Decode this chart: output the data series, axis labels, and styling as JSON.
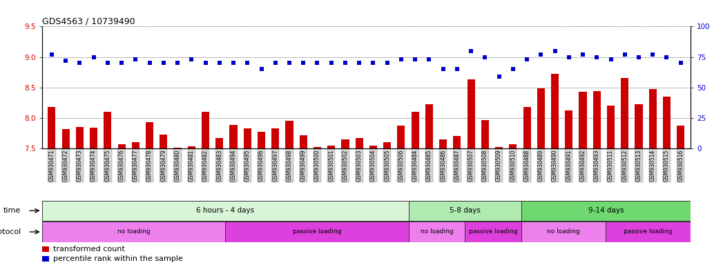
{
  "title": "GDS4563 / 10739490",
  "samples": [
    "GSM930471",
    "GSM930472",
    "GSM930473",
    "GSM930474",
    "GSM930475",
    "GSM930476",
    "GSM930477",
    "GSM930478",
    "GSM930479",
    "GSM930480",
    "GSM930481",
    "GSM930482",
    "GSM930483",
    "GSM930494",
    "GSM930495",
    "GSM930496",
    "GSM930497",
    "GSM930498",
    "GSM930499",
    "GSM930500",
    "GSM930501",
    "GSM930502",
    "GSM930503",
    "GSM930504",
    "GSM930505",
    "GSM930506",
    "GSM930484",
    "GSM930485",
    "GSM930486",
    "GSM930487",
    "GSM930507",
    "GSM930508",
    "GSM930509",
    "GSM930510",
    "GSM930488",
    "GSM930489",
    "GSM930490",
    "GSM930491",
    "GSM930492",
    "GSM930493",
    "GSM930511",
    "GSM930512",
    "GSM930513",
    "GSM930514",
    "GSM930515",
    "GSM930516"
  ],
  "bar_values": [
    8.18,
    7.82,
    7.85,
    7.84,
    8.1,
    7.57,
    7.6,
    7.93,
    7.73,
    7.51,
    7.53,
    8.1,
    7.67,
    7.88,
    7.83,
    7.77,
    7.83,
    7.95,
    7.72,
    7.52,
    7.55,
    7.65,
    7.67,
    7.55,
    7.6,
    7.87,
    8.1,
    8.23,
    7.65,
    7.7,
    8.63,
    7.96,
    7.52,
    7.57,
    8.18,
    8.48,
    8.72,
    8.12,
    8.43,
    8.44,
    8.2,
    8.65,
    8.23,
    8.47,
    8.35,
    7.87
  ],
  "dot_pct": [
    77,
    72,
    70,
    75,
    70,
    70,
    73,
    70,
    70,
    70,
    73,
    70,
    70,
    70,
    70,
    65,
    70,
    70,
    70,
    70,
    70,
    70,
    70,
    70,
    70,
    73,
    73,
    73,
    65,
    65,
    80,
    75,
    59,
    65,
    73,
    77,
    80,
    75,
    77,
    75,
    73,
    77,
    75,
    77,
    75,
    70
  ],
  "ylim_left": [
    7.5,
    9.5
  ],
  "ylim_right": [
    0,
    100
  ],
  "yticks_left": [
    7.5,
    8.0,
    8.5,
    9.0,
    9.5
  ],
  "yticks_right": [
    0,
    25,
    50,
    75,
    100
  ],
  "bar_color": "#cc0000",
  "dot_color": "#0000cc",
  "bg_color": "#ffffff",
  "xtick_bg": "#d4d4d4",
  "time_groups": [
    {
      "label": "6 hours - 4 days",
      "start": 0,
      "end": 26,
      "color": "#d8f5d8"
    },
    {
      "label": "5-8 days",
      "start": 26,
      "end": 34,
      "color": "#b0eab0"
    },
    {
      "label": "9-14 days",
      "start": 34,
      "end": 46,
      "color": "#70d870"
    }
  ],
  "protocol_groups": [
    {
      "label": "no loading",
      "start": 0,
      "end": 13,
      "color": "#ee80ee"
    },
    {
      "label": "passive loading",
      "start": 13,
      "end": 26,
      "color": "#dd40dd"
    },
    {
      "label": "no loading",
      "start": 26,
      "end": 30,
      "color": "#ee80ee"
    },
    {
      "label": "passive loading",
      "start": 30,
      "end": 34,
      "color": "#dd40dd"
    },
    {
      "label": "no loading",
      "start": 34,
      "end": 40,
      "color": "#ee80ee"
    },
    {
      "label": "passive loading",
      "start": 40,
      "end": 46,
      "color": "#dd40dd"
    }
  ],
  "time_label": "time",
  "protocol_label": "protocol",
  "legend_bar_label": "transformed count",
  "legend_dot_label": "percentile rank within the sample",
  "left_tick_color": "#cc0000",
  "right_tick_color": "#0000cc",
  "bar_baseline": 7.5
}
